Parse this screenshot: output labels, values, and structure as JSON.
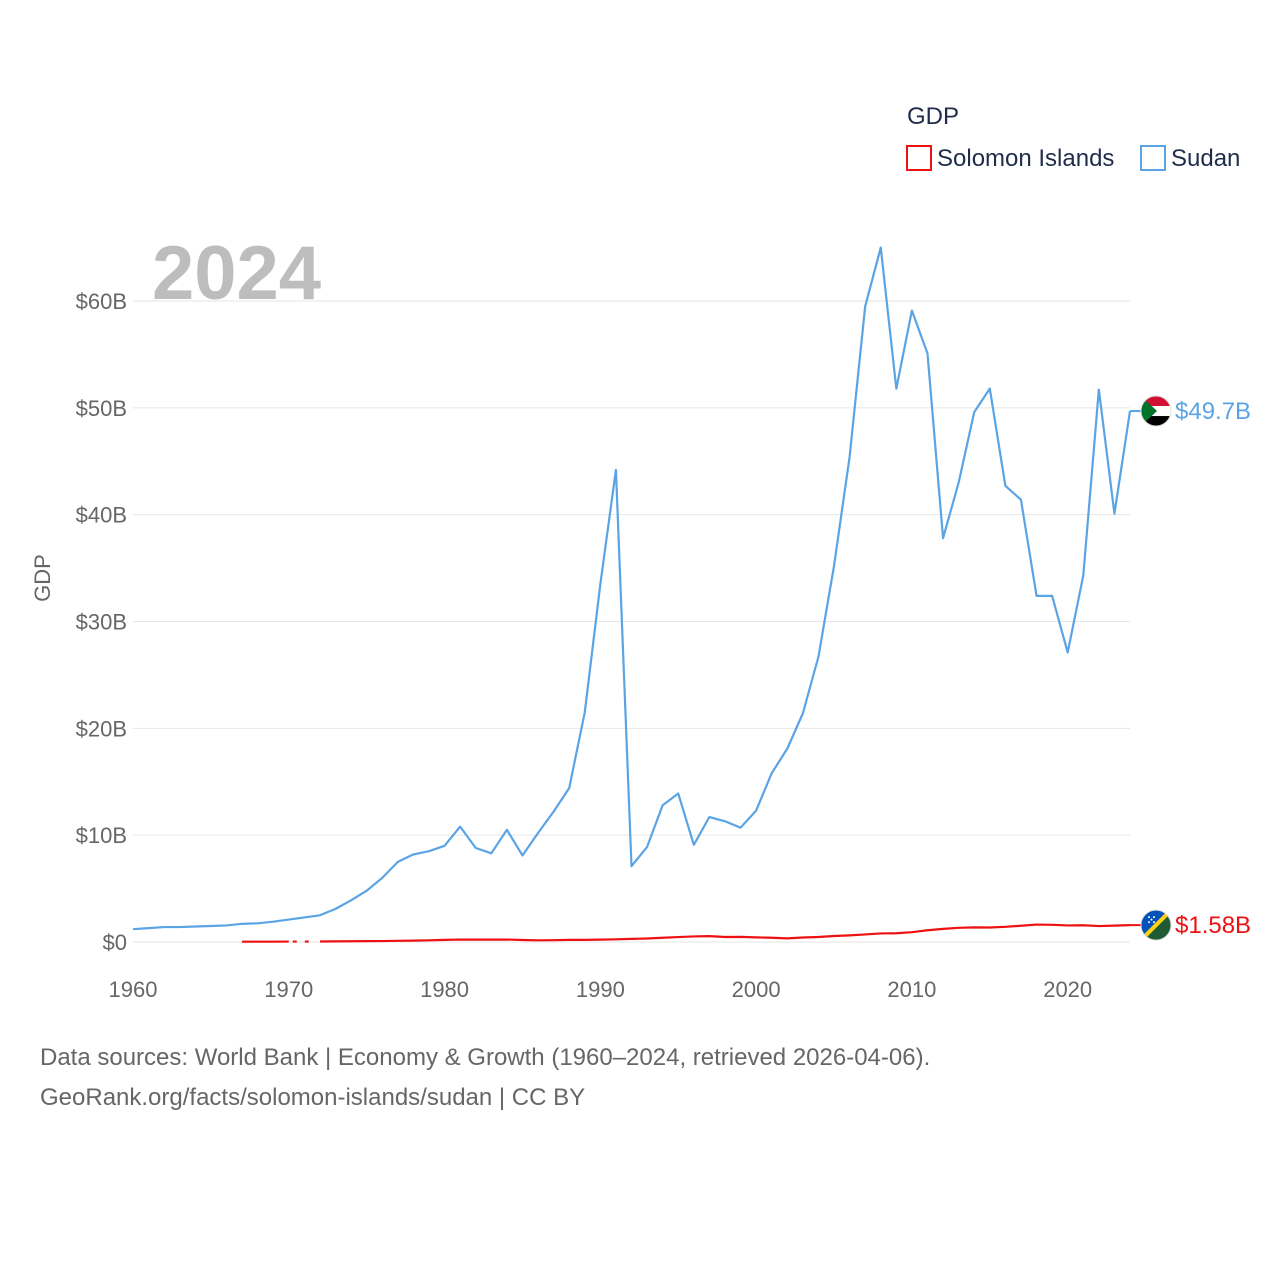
{
  "chart_data": {
    "type": "line",
    "title": "GDP",
    "year_label": "2024",
    "ylabel": "GDP",
    "xlabel": "",
    "xlim": [
      1960,
      2024
    ],
    "ylim": [
      0,
      65
    ],
    "y_unit": "billion USD",
    "x_ticks": [
      1960,
      1970,
      1980,
      1990,
      2000,
      2010,
      2020
    ],
    "x_tick_labels": [
      "1960",
      "1970",
      "1980",
      "1990",
      "2000",
      "2010",
      "2020"
    ],
    "y_ticks": [
      0,
      10,
      20,
      30,
      40,
      50,
      60
    ],
    "y_tick_labels": [
      "$0",
      "$10B",
      "$20B",
      "$30B",
      "$40B",
      "$50B",
      "$60B"
    ],
    "legend": {
      "title": "GDP",
      "position": "top-right"
    },
    "grid": true,
    "series": [
      {
        "name": "Solomon Islands",
        "color": "#ee1111",
        "end_label": "$1.58B",
        "end_value": 1.58,
        "flag": "solomon-islands-flag-icon",
        "x": [
          1967,
          1968,
          1969,
          1970,
          1972,
          1973,
          1974,
          1975,
          1976,
          1977,
          1978,
          1979,
          1980,
          1981,
          1982,
          1983,
          1984,
          1985,
          1986,
          1987,
          1988,
          1989,
          1990,
          1991,
          1992,
          1993,
          1994,
          1995,
          1996,
          1997,
          1998,
          1999,
          2000,
          2001,
          2002,
          2003,
          2004,
          2005,
          2006,
          2007,
          2008,
          2009,
          2010,
          2011,
          2012,
          2013,
          2014,
          2015,
          2016,
          2017,
          2018,
          2019,
          2020,
          2021,
          2022,
          2023,
          2024
        ],
        "values": [
          0.03,
          0.03,
          0.03,
          0.04,
          0.05,
          0.06,
          0.07,
          0.08,
          0.09,
          0.11,
          0.13,
          0.16,
          0.2,
          0.23,
          0.22,
          0.22,
          0.23,
          0.19,
          0.16,
          0.17,
          0.2,
          0.2,
          0.22,
          0.25,
          0.29,
          0.33,
          0.4,
          0.46,
          0.52,
          0.55,
          0.47,
          0.48,
          0.43,
          0.4,
          0.34,
          0.42,
          0.47,
          0.56,
          0.62,
          0.71,
          0.8,
          0.82,
          0.92,
          1.1,
          1.23,
          1.33,
          1.37,
          1.36,
          1.42,
          1.52,
          1.63,
          1.61,
          1.55,
          1.57,
          1.49,
          1.53,
          1.58
        ],
        "gaps": [
          [
            1970,
            1972
          ]
        ]
      },
      {
        "name": "Sudan",
        "color": "#5aa4e6",
        "end_label": "$49.7B",
        "end_value": 49.7,
        "flag": "sudan-flag-icon",
        "x": [
          1960,
          1961,
          1962,
          1963,
          1964,
          1965,
          1966,
          1967,
          1968,
          1969,
          1970,
          1971,
          1972,
          1973,
          1974,
          1975,
          1976,
          1977,
          1978,
          1979,
          1980,
          1981,
          1982,
          1983,
          1984,
          1985,
          1986,
          1987,
          1988,
          1989,
          1990,
          1991,
          1992,
          1993,
          1994,
          1995,
          1996,
          1997,
          1998,
          1999,
          2000,
          2001,
          2002,
          2003,
          2004,
          2005,
          2006,
          2007,
          2008,
          2009,
          2010,
          2011,
          2012,
          2013,
          2014,
          2015,
          2016,
          2017,
          2018,
          2019,
          2020,
          2021,
          2022,
          2023,
          2024
        ],
        "values": [
          1.2,
          1.3,
          1.4,
          1.4,
          1.45,
          1.5,
          1.55,
          1.7,
          1.75,
          1.9,
          2.1,
          2.3,
          2.5,
          3.1,
          3.9,
          4.8,
          6.0,
          7.5,
          8.2,
          8.5,
          9.0,
          10.8,
          8.8,
          8.3,
          10.5,
          8.1,
          10.2,
          12.2,
          14.4,
          21.5,
          33.5,
          44.2,
          7.1,
          8.9,
          12.8,
          13.9,
          9.1,
          11.7,
          11.3,
          10.7,
          12.3,
          15.8,
          18.1,
          21.4,
          26.7,
          35.2,
          45.4,
          59.5,
          65.0,
          51.8,
          59.1,
          55.1,
          37.8,
          43.0,
          49.6,
          51.8,
          42.7,
          41.4,
          32.4,
          32.4,
          27.1,
          34.3,
          51.7,
          40.1,
          49.7
        ]
      }
    ]
  },
  "footer": {
    "line1": "Data sources: World Bank | Economy & Growth (1960–2024, retrieved 2026-04-06).",
    "line2": "GeoRank.org/facts/solomon-islands/sudan | CC BY"
  }
}
